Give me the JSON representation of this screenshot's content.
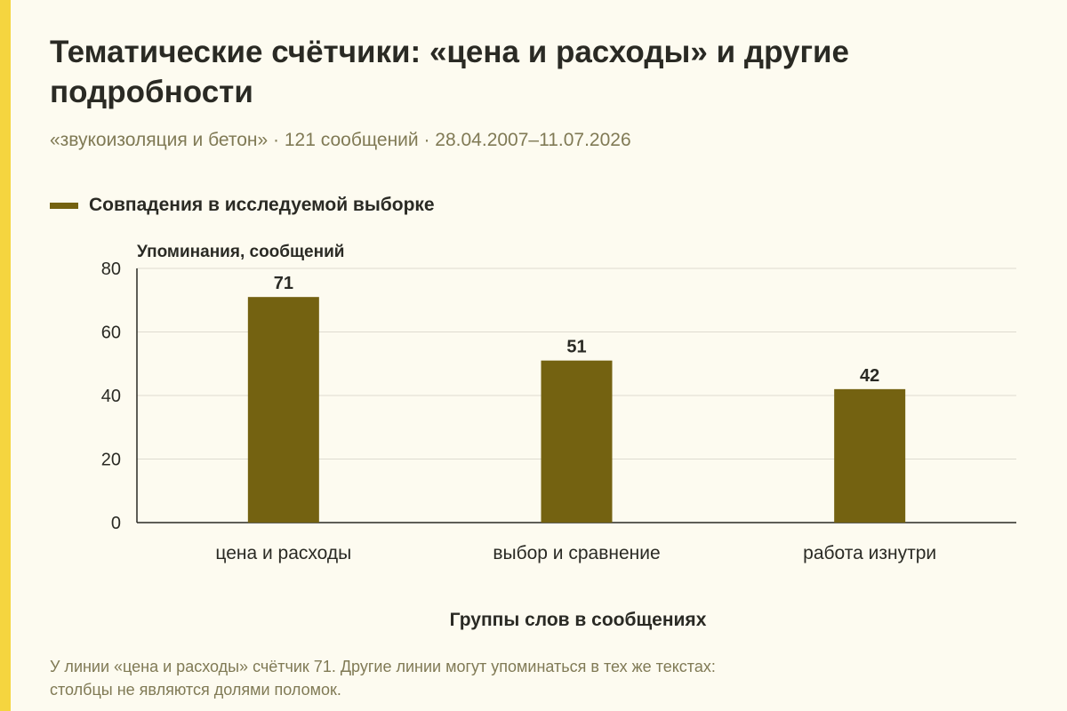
{
  "title": "Тематические счётчики: «цена и расходы» и другие подробности",
  "subtitle": "«звукоизоляция и бетон» · 121 сообщений · 28.04.2007–11.07.2026",
  "footnote_line1": "У линии «цена и расходы» счётчик 71. Другие линии могут упоминаться в тех же текстах:",
  "footnote_line2": "столбцы не являются долями поломок.",
  "colors": {
    "bar": "#746211",
    "grid": "#dedbd0",
    "axis": "#2a2a24",
    "accent": "#f5d53f"
  },
  "chart_data": {
    "type": "bar",
    "categories": [
      "цена и расходы",
      "выбор и сравнение",
      "работа изнутри"
    ],
    "series": [
      {
        "name": "Совпадения в исследуемой выборке",
        "values": [
          71,
          51,
          42
        ]
      }
    ],
    "ylabel": "Упоминания, сообщений",
    "xlabel": "Группы слов в сообщениях",
    "ylim": [
      0,
      80
    ],
    "yticks": [
      0,
      20,
      40,
      60,
      80
    ],
    "grid": true,
    "legend_position": "top-left",
    "data_labels": true
  }
}
